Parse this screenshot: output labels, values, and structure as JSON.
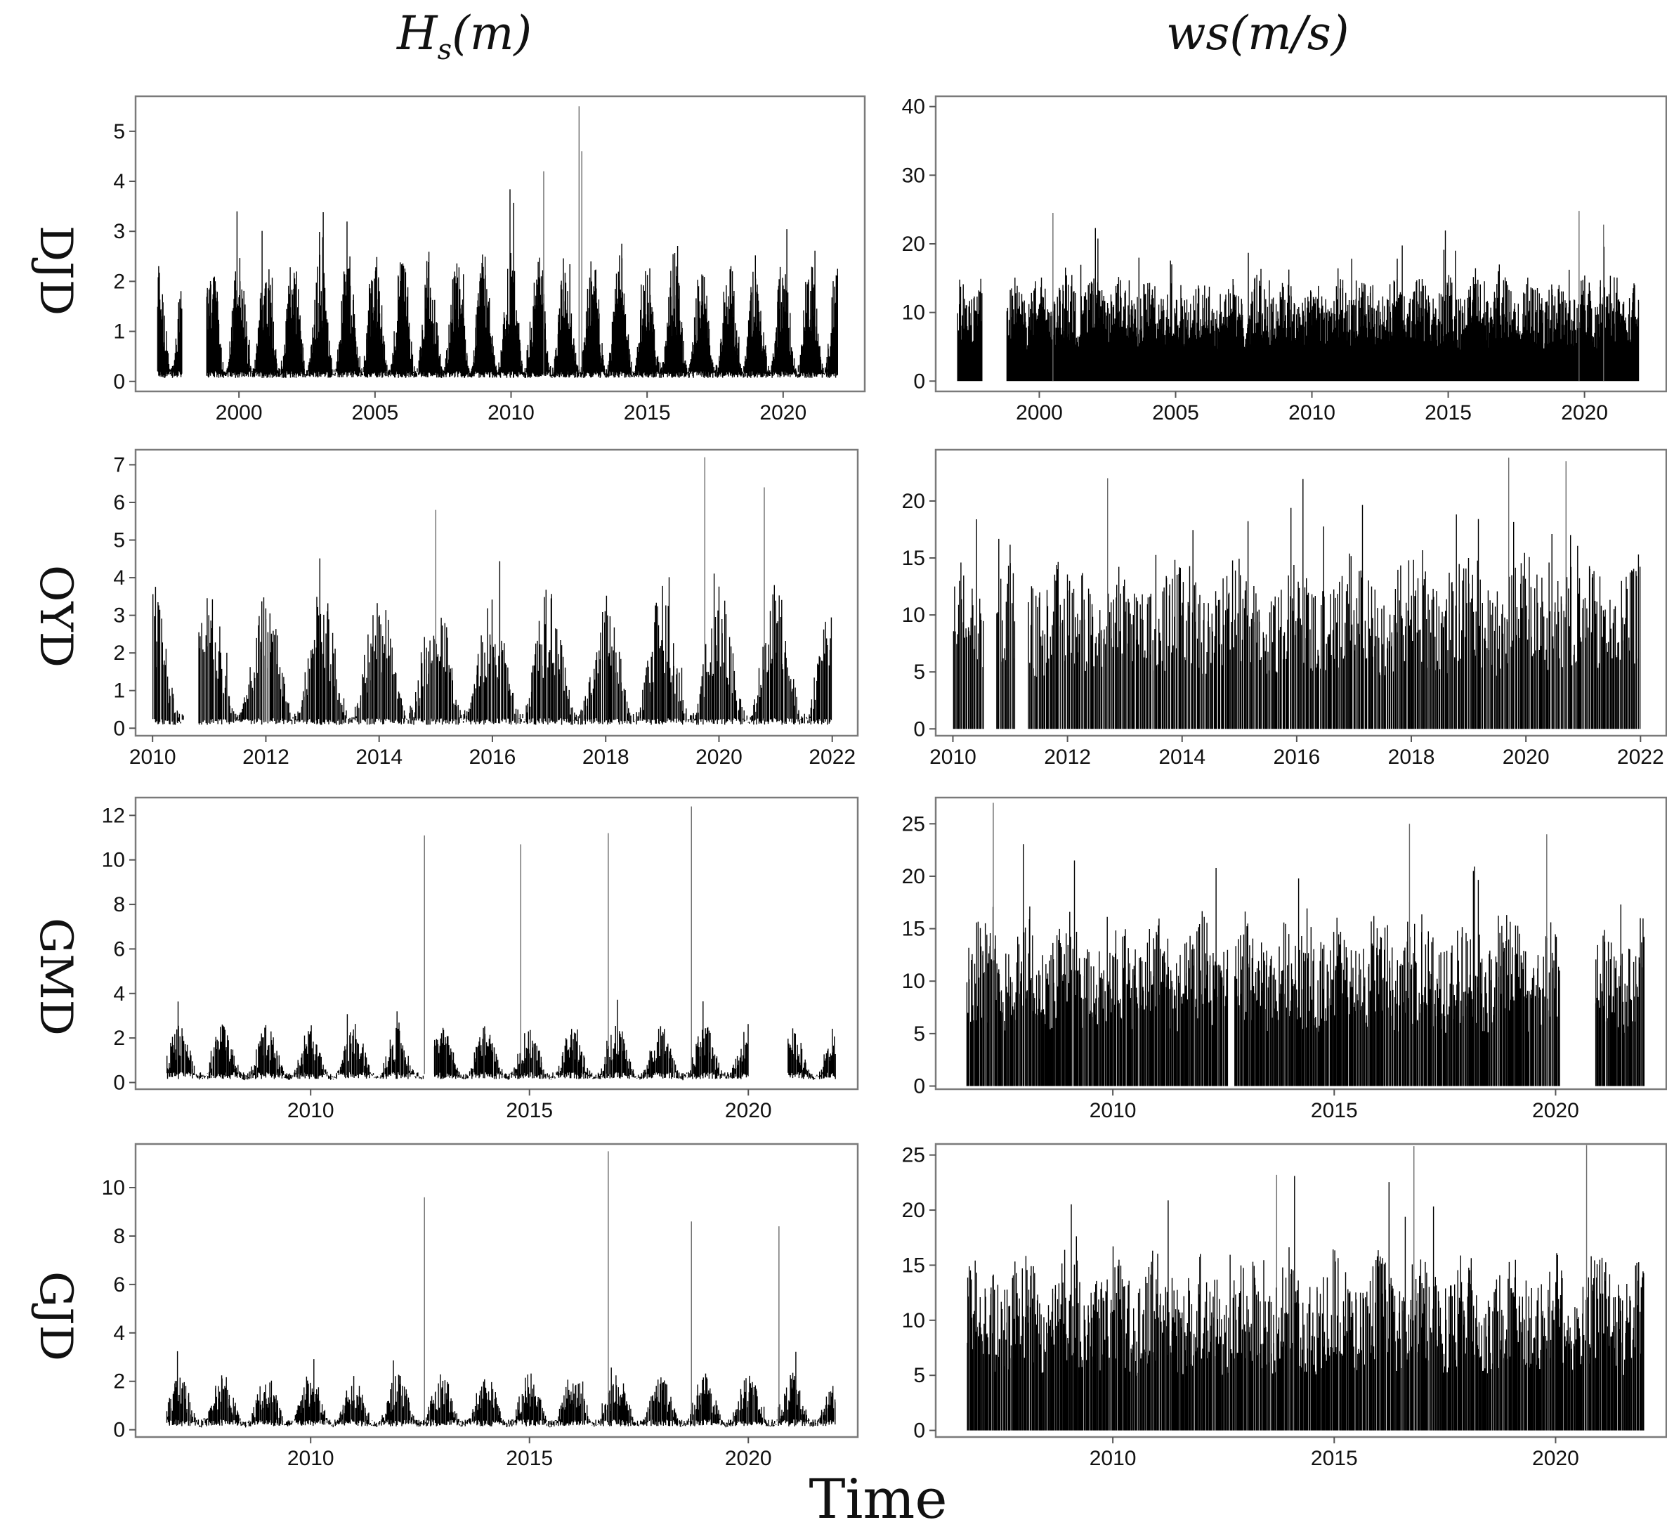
{
  "figure": {
    "column_titles": {
      "hs": {
        "main": "H",
        "sub": "s",
        "rest": "(m)"
      },
      "ws": {
        "text": "ws(m/s)"
      }
    },
    "x_title": "Time"
  },
  "chart_data": [
    {
      "type": "line",
      "station": "DJD",
      "variable": "Hs",
      "unit": "m",
      "xlim": [
        1996.2,
        2023.0
      ],
      "ylim": [
        -0.2,
        5.7
      ],
      "yticks": [
        0,
        1,
        2,
        3,
        4,
        5
      ],
      "xticks": [
        2000,
        2005,
        2010,
        2015,
        2020
      ],
      "data_range": [
        1997.0,
        2022.0
      ],
      "gaps": [
        [
          1997.9,
          1998.8
        ]
      ],
      "typical_max": 2.2,
      "peaks": [
        [
          2012.5,
          5.5
        ],
        [
          2012.6,
          4.6
        ],
        [
          2011.2,
          4.2
        ]
      ]
    },
    {
      "type": "line",
      "station": "DJD",
      "variable": "ws",
      "unit": "m/s",
      "xlim": [
        1996.2,
        2023.0
      ],
      "ylim": [
        -1.5,
        41.5
      ],
      "yticks": [
        0,
        10,
        20,
        30,
        40
      ],
      "xticks": [
        2000,
        2005,
        2010,
        2015,
        2020
      ],
      "data_range": [
        1997.0,
        2022.0
      ],
      "gaps": [
        [
          1997.9,
          1998.8
        ]
      ],
      "typical_max": 13,
      "peaks": [
        [
          2000.5,
          24.5
        ],
        [
          2019.8,
          24.8
        ],
        [
          2020.7,
          22.8
        ]
      ]
    },
    {
      "type": "line",
      "station": "OYD",
      "variable": "Hs",
      "unit": "m",
      "xlim": [
        2009.7,
        2022.45
      ],
      "ylim": [
        -0.2,
        7.4
      ],
      "yticks": [
        0,
        1,
        2,
        3,
        4,
        5,
        6,
        7
      ],
      "xticks": [
        2010,
        2012,
        2014,
        2016,
        2018,
        2020,
        2022
      ],
      "data_range": [
        2010.0,
        2022.0
      ],
      "gaps": [
        [
          2010.55,
          2010.8
        ]
      ],
      "typical_max": 3.2,
      "peaks": [
        [
          2019.75,
          7.2
        ],
        [
          2020.8,
          6.4
        ],
        [
          2015.0,
          5.8
        ]
      ]
    },
    {
      "type": "line",
      "station": "OYD",
      "variable": "ws",
      "unit": "m/s",
      "xlim": [
        2009.7,
        2022.45
      ],
      "ylim": [
        -0.6,
        24.5
      ],
      "yticks": [
        0,
        5,
        10,
        15,
        20
      ],
      "xticks": [
        2010,
        2012,
        2014,
        2016,
        2018,
        2020,
        2022
      ],
      "data_range": [
        2010.0,
        2022.0
      ],
      "gaps": [
        [
          2010.55,
          2010.75
        ],
        [
          2011.1,
          2011.3
        ]
      ],
      "typical_max": 13,
      "peaks": [
        [
          2019.7,
          23.8
        ],
        [
          2020.7,
          23.5
        ],
        [
          2012.7,
          22.0
        ]
      ]
    },
    {
      "type": "line",
      "station": "GMD",
      "variable": "Hs",
      "unit": "m",
      "xlim": [
        2006.0,
        2022.5
      ],
      "ylim": [
        -0.3,
        12.8
      ],
      "yticks": [
        0,
        2,
        4,
        6,
        8,
        10,
        12
      ],
      "xticks": [
        2010,
        2015,
        2020
      ],
      "data_range": [
        2006.7,
        2022.0
      ],
      "gaps": [
        [
          2012.6,
          2012.8
        ],
        [
          2020.0,
          2020.9
        ]
      ],
      "typical_max": 2.2,
      "peaks": [
        [
          2018.7,
          12.4
        ],
        [
          2012.6,
          11.1
        ],
        [
          2016.8,
          11.2
        ],
        [
          2014.8,
          10.7
        ]
      ]
    },
    {
      "type": "line",
      "station": "GMD",
      "variable": "ws",
      "unit": "m/s",
      "xlim": [
        2006.0,
        2022.5
      ],
      "ylim": [
        -0.3,
        27.5
      ],
      "yticks": [
        0,
        5,
        10,
        15,
        20,
        25
      ],
      "xticks": [
        2010,
        2015,
        2020
      ],
      "data_range": [
        2006.7,
        2022.0
      ],
      "gaps": [
        [
          2012.6,
          2012.75
        ],
        [
          2020.1,
          2020.9
        ]
      ],
      "typical_max": 14,
      "peaks": [
        [
          2007.3,
          27.0
        ],
        [
          2016.7,
          25.0
        ],
        [
          2019.8,
          24.0
        ]
      ]
    },
    {
      "type": "line",
      "station": "GJD",
      "variable": "Hs",
      "unit": "m",
      "xlim": [
        2006.0,
        2022.5
      ],
      "ylim": [
        -0.3,
        11.8
      ],
      "yticks": [
        0,
        2,
        4,
        6,
        8,
        10
      ],
      "xticks": [
        2010,
        2015,
        2020
      ],
      "data_range": [
        2006.7,
        2022.0
      ],
      "gaps": [],
      "typical_max": 2.0,
      "peaks": [
        [
          2016.8,
          11.5
        ],
        [
          2012.6,
          9.6
        ],
        [
          2018.7,
          8.6
        ],
        [
          2020.7,
          8.4
        ]
      ]
    },
    {
      "type": "line",
      "station": "GJD",
      "variable": "ws",
      "unit": "m/s",
      "xlim": [
        2006.0,
        2022.5
      ],
      "ylim": [
        -0.6,
        26.0
      ],
      "yticks": [
        0,
        5,
        10,
        15,
        20,
        25
      ],
      "xticks": [
        2010,
        2015,
        2020
      ],
      "data_range": [
        2006.7,
        2022.0
      ],
      "gaps": [],
      "typical_max": 14,
      "peaks": [
        [
          2016.8,
          25.8
        ],
        [
          2020.7,
          25.9
        ],
        [
          2013.7,
          23.2
        ]
      ]
    }
  ]
}
